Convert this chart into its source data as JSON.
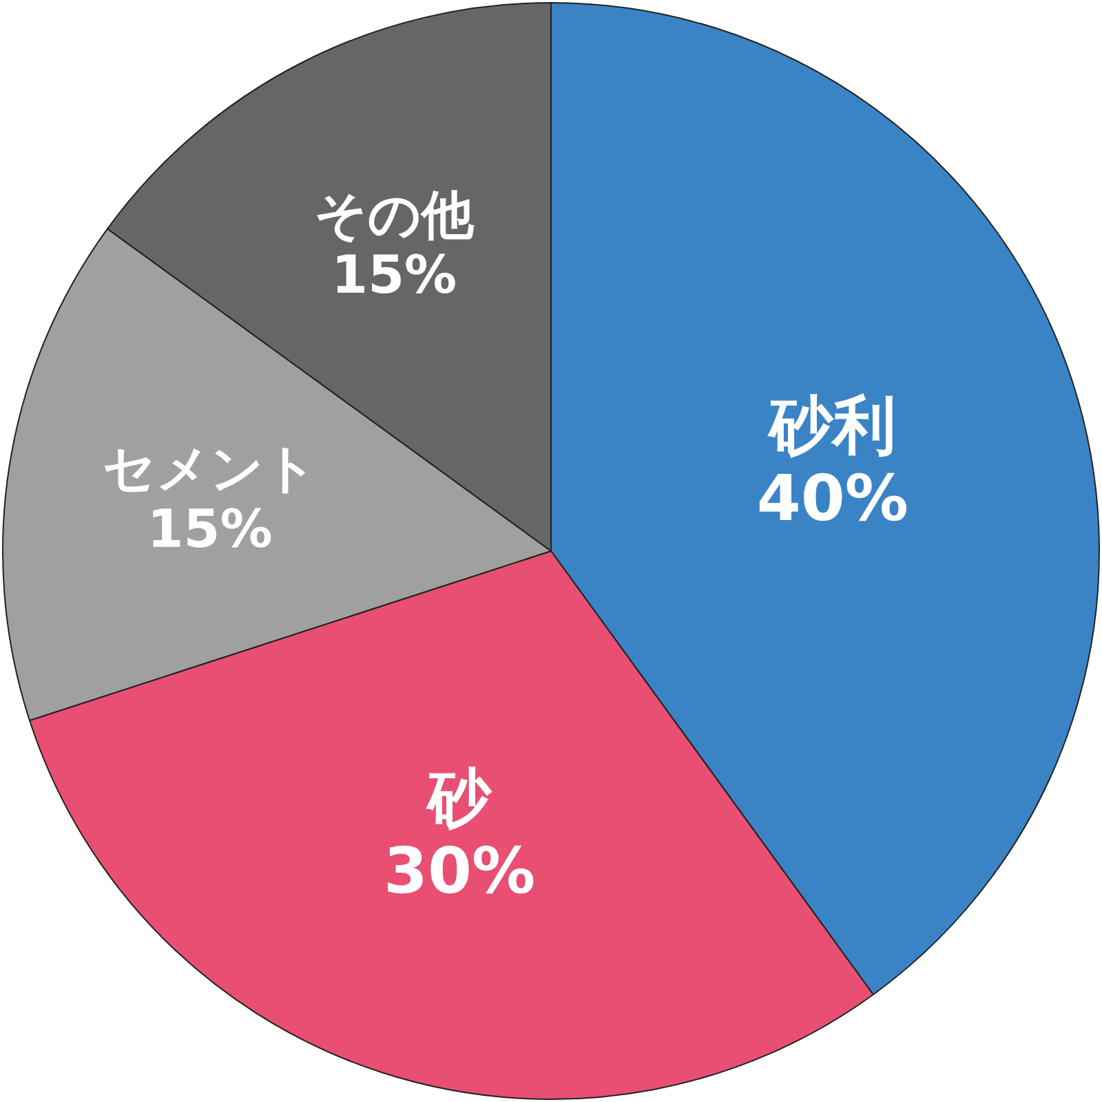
{
  "chart_data": {
    "type": "pie",
    "categories": [
      "砂利",
      "砂",
      "セメント",
      "その他"
    ],
    "values": [
      40,
      30,
      15,
      15
    ],
    "value_labels": [
      "40%",
      "30%",
      "15%",
      "15%"
    ],
    "colors": [
      "#3a84c6",
      "#e84f72",
      "#a0a0a0",
      "#666666"
    ]
  }
}
